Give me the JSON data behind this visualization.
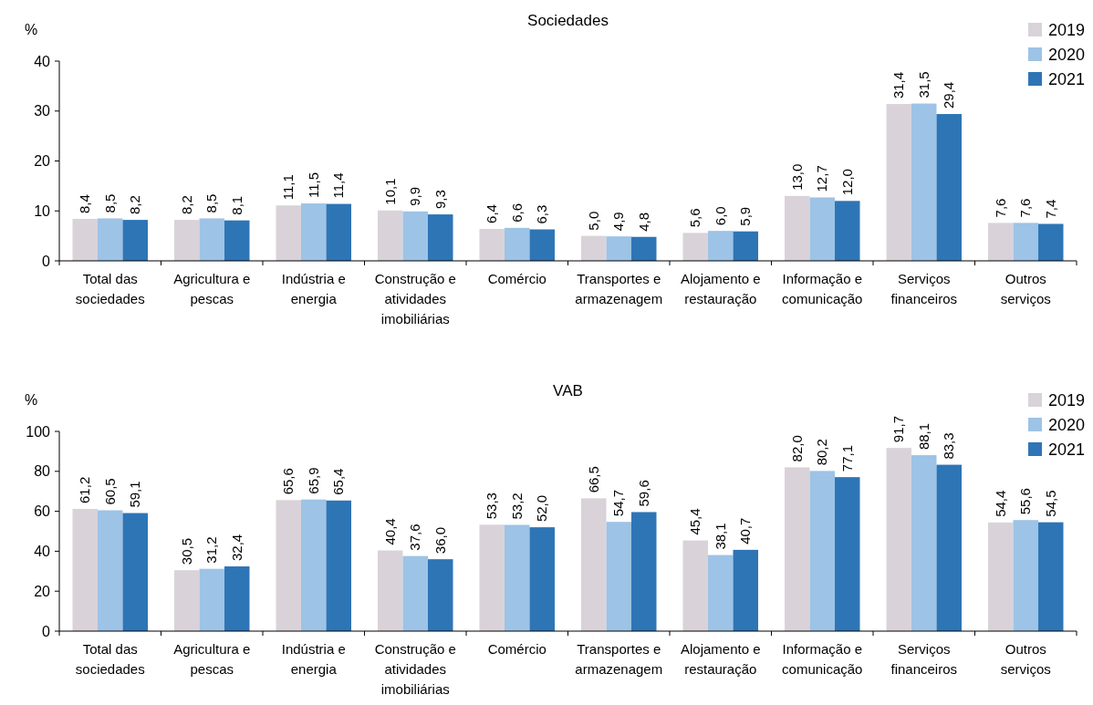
{
  "chart_data": [
    {
      "type": "bar",
      "title": "Sociedades",
      "ylabel": "%",
      "categories": [
        "Total das sociedades",
        "Agricultura e pescas",
        "Indústria e energia",
        "Construção e atividades imobiliárias",
        "Comércio",
        "Transportes e armazenagem",
        "Alojamento e restauração",
        "Informação e comunicação",
        "Serviços financeiros",
        "Outros serviços"
      ],
      "series": [
        {
          "name": "2019",
          "color": "#d9d3d9",
          "values": [
            8.4,
            8.2,
            11.1,
            10.1,
            6.4,
            5.0,
            5.6,
            13.0,
            31.4,
            7.6
          ]
        },
        {
          "name": "2020",
          "color": "#9dc3e6",
          "values": [
            8.5,
            8.5,
            11.5,
            9.9,
            6.6,
            4.9,
            6.0,
            12.7,
            31.5,
            7.6
          ]
        },
        {
          "name": "2021",
          "color": "#2e75b6",
          "values": [
            8.2,
            8.1,
            11.4,
            9.3,
            6.3,
            4.8,
            5.9,
            12.0,
            29.4,
            7.4
          ]
        }
      ],
      "value_labels": [
        [
          "8,4",
          "8,2",
          "11,1",
          "10,1",
          "6,4",
          "5,0",
          "5,6",
          "13,0",
          "31,4",
          "7,6"
        ],
        [
          "8,5",
          "8,5",
          "11,5",
          "9,9",
          "6,6",
          "4,9",
          "6,0",
          "12,7",
          "31,5",
          "7,6"
        ],
        [
          "8,2",
          "8,1",
          "11,4",
          "9,3",
          "6,3",
          "4,8",
          "5,9",
          "12,0",
          "29,4",
          "7,4"
        ]
      ],
      "ylim": [
        0,
        40
      ],
      "yticks": [
        0,
        10,
        20,
        30,
        40
      ],
      "grid": false,
      "legend": "top right"
    },
    {
      "type": "bar",
      "title": "VAB",
      "ylabel": "%",
      "categories": [
        "Total das sociedades",
        "Agricultura e pescas",
        "Indústria e energia",
        "Construção e atividades imobiliárias",
        "Comércio",
        "Transportes e armazenagem",
        "Alojamento e restauração",
        "Informação e comunicação",
        "Serviços financeiros",
        "Outros serviços"
      ],
      "series": [
        {
          "name": "2019",
          "color": "#d9d3d9",
          "values": [
            61.2,
            30.5,
            65.6,
            40.4,
            53.3,
            66.5,
            45.4,
            82.0,
            91.7,
            54.4
          ]
        },
        {
          "name": "2020",
          "color": "#9dc3e6",
          "values": [
            60.5,
            31.2,
            65.9,
            37.6,
            53.2,
            54.7,
            38.1,
            80.2,
            88.1,
            55.6
          ]
        },
        {
          "name": "2021",
          "color": "#2e75b6",
          "values": [
            59.1,
            32.4,
            65.4,
            36.0,
            52.0,
            59.6,
            40.7,
            77.1,
            83.3,
            54.5
          ]
        }
      ],
      "value_labels": [
        [
          "61,2",
          "30,5",
          "65,6",
          "40,4",
          "53,3",
          "66,5",
          "45,4",
          "82,0",
          "91,7",
          "54,4"
        ],
        [
          "60,5",
          "31,2",
          "65,9",
          "37,6",
          "53,2",
          "54,7",
          "38,1",
          "80,2",
          "88,1",
          "55,6"
        ],
        [
          "59,1",
          "32,4",
          "65,4",
          "36,0",
          "52,0",
          "59,6",
          "40,7",
          "77,1",
          "83,3",
          "54,5"
        ]
      ],
      "ylim": [
        0,
        100
      ],
      "yticks": [
        0,
        20,
        40,
        60,
        80,
        100
      ],
      "grid": false,
      "legend": "top right"
    }
  ]
}
